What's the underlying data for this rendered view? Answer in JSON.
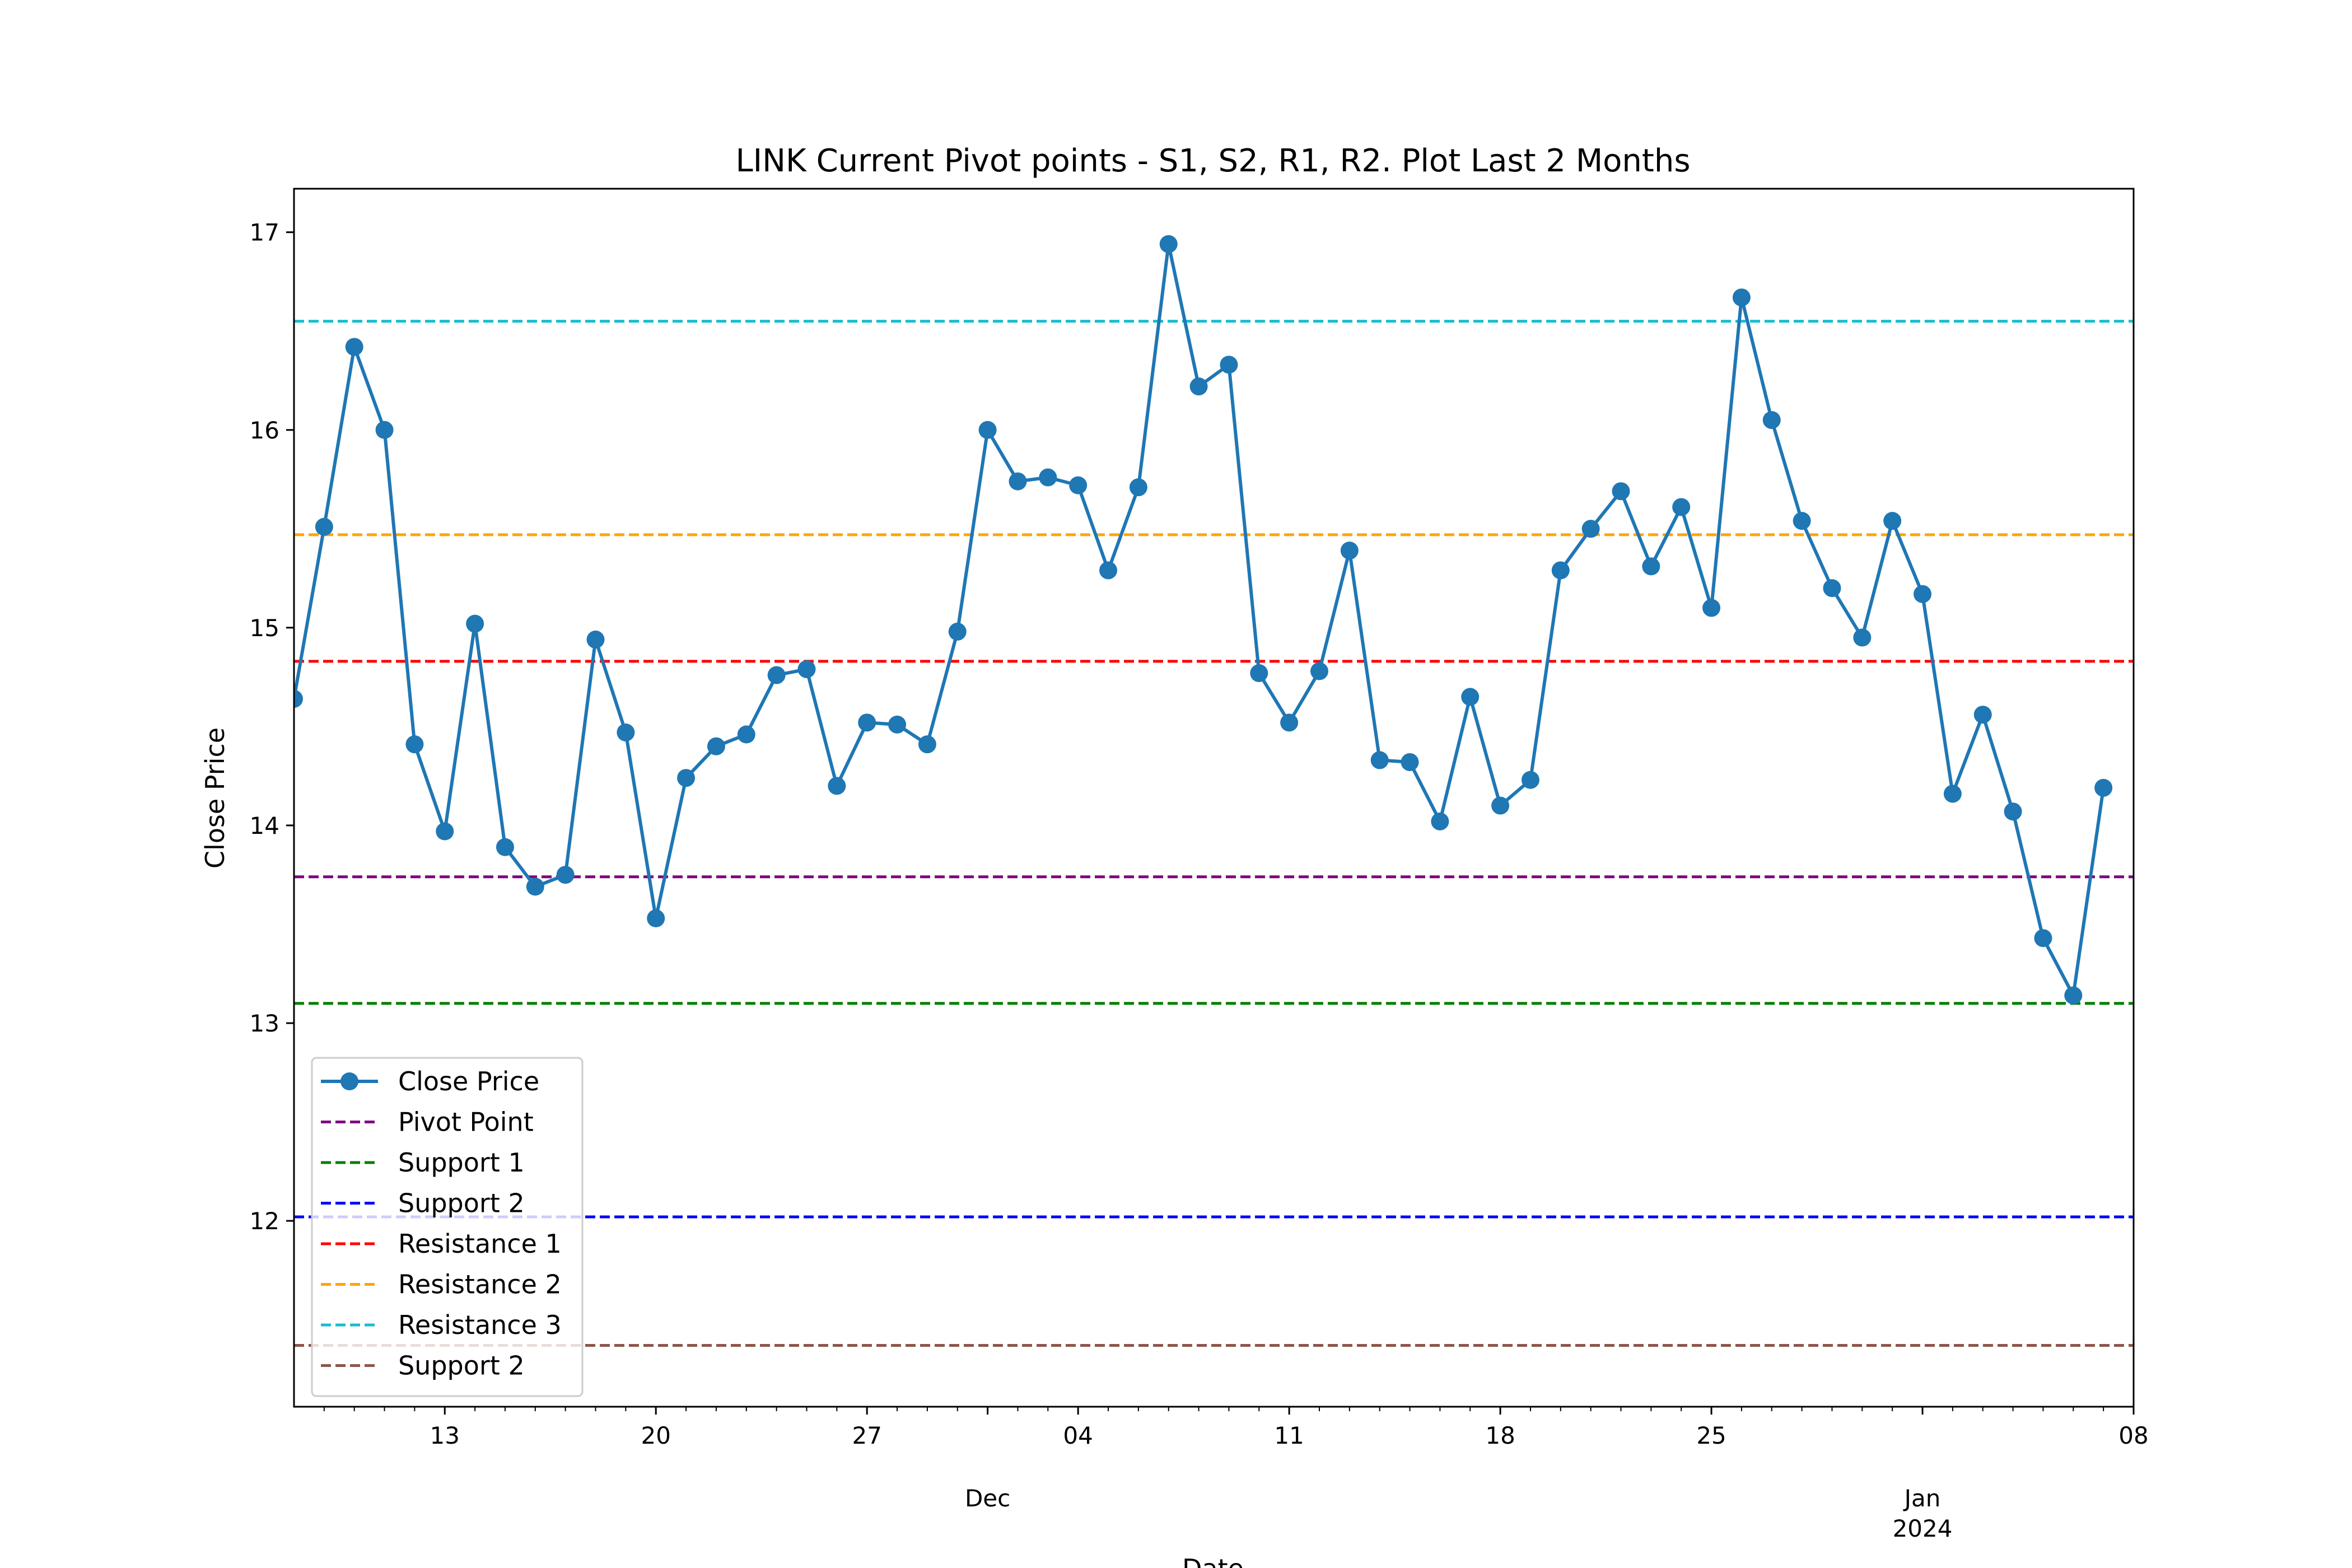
{
  "chart_data": {
    "type": "line",
    "title": "LINK Current Pivot points - S1, S2, R1, R2. Plot Last 2 Months",
    "xlabel": "Date",
    "ylabel": "Close Price",
    "xlim": [
      "2023-11-08",
      "2024-01-08"
    ],
    "ylim": [
      11.06,
      17.22
    ],
    "yticks": [
      12,
      13,
      14,
      15,
      16,
      17
    ],
    "xticks": [
      {
        "date": "2023-11-13",
        "label": "13",
        "sub": ""
      },
      {
        "date": "2023-11-20",
        "label": "20",
        "sub": ""
      },
      {
        "date": "2023-11-27",
        "label": "27",
        "sub": ""
      },
      {
        "date": "2023-12-01",
        "label": "",
        "sub": "Dec"
      },
      {
        "date": "2023-12-04",
        "label": "04",
        "sub": ""
      },
      {
        "date": "2023-12-11",
        "label": "11",
        "sub": ""
      },
      {
        "date": "2023-12-18",
        "label": "18",
        "sub": ""
      },
      {
        "date": "2023-12-25",
        "label": "25",
        "sub": ""
      },
      {
        "date": "2024-01-01",
        "label": "",
        "sub": "Jan\n2024"
      },
      {
        "date": "2024-01-08",
        "label": "08",
        "sub": ""
      }
    ],
    "grid": false,
    "legend_position": "lower-left",
    "series": [
      {
        "name": "Close Price",
        "color": "#1f77b4",
        "style": "line-marker",
        "x_start": "2023-11-08",
        "x_step_days": 1,
        "values": [
          14.64,
          15.51,
          16.42,
          16.0,
          14.41,
          13.97,
          15.02,
          13.89,
          13.69,
          13.75,
          14.94,
          14.47,
          13.53,
          14.24,
          14.4,
          14.46,
          14.76,
          14.79,
          14.2,
          14.52,
          14.51,
          14.41,
          14.98,
          16.0,
          15.74,
          15.76,
          15.72,
          15.29,
          15.71,
          16.94,
          16.22,
          16.33,
          14.77,
          14.52,
          14.78,
          15.39,
          14.33,
          14.32,
          14.02,
          14.65,
          14.1,
          14.23,
          15.29,
          15.5,
          15.69,
          15.31,
          15.61,
          15.1,
          16.67,
          16.05,
          15.54,
          15.2,
          14.95,
          15.54,
          15.17,
          14.16,
          14.56,
          14.07,
          13.43,
          13.14,
          14.19
        ]
      }
    ],
    "hlines": [
      {
        "name": "Pivot Point",
        "value": 13.74,
        "color": "#800080"
      },
      {
        "name": "Support 1",
        "value": 13.1,
        "color": "#008000"
      },
      {
        "name": "Support 2",
        "value": 12.02,
        "color": "#0000ff"
      },
      {
        "name": "Resistance 1",
        "value": 14.83,
        "color": "#ff0000"
      },
      {
        "name": "Resistance 2",
        "value": 15.47,
        "color": "#ffa500"
      },
      {
        "name": "Resistance 3",
        "value": 16.55,
        "color": "#17becf"
      },
      {
        "name": "Support 2",
        "value": 11.37,
        "color": "#8c564b"
      }
    ]
  }
}
